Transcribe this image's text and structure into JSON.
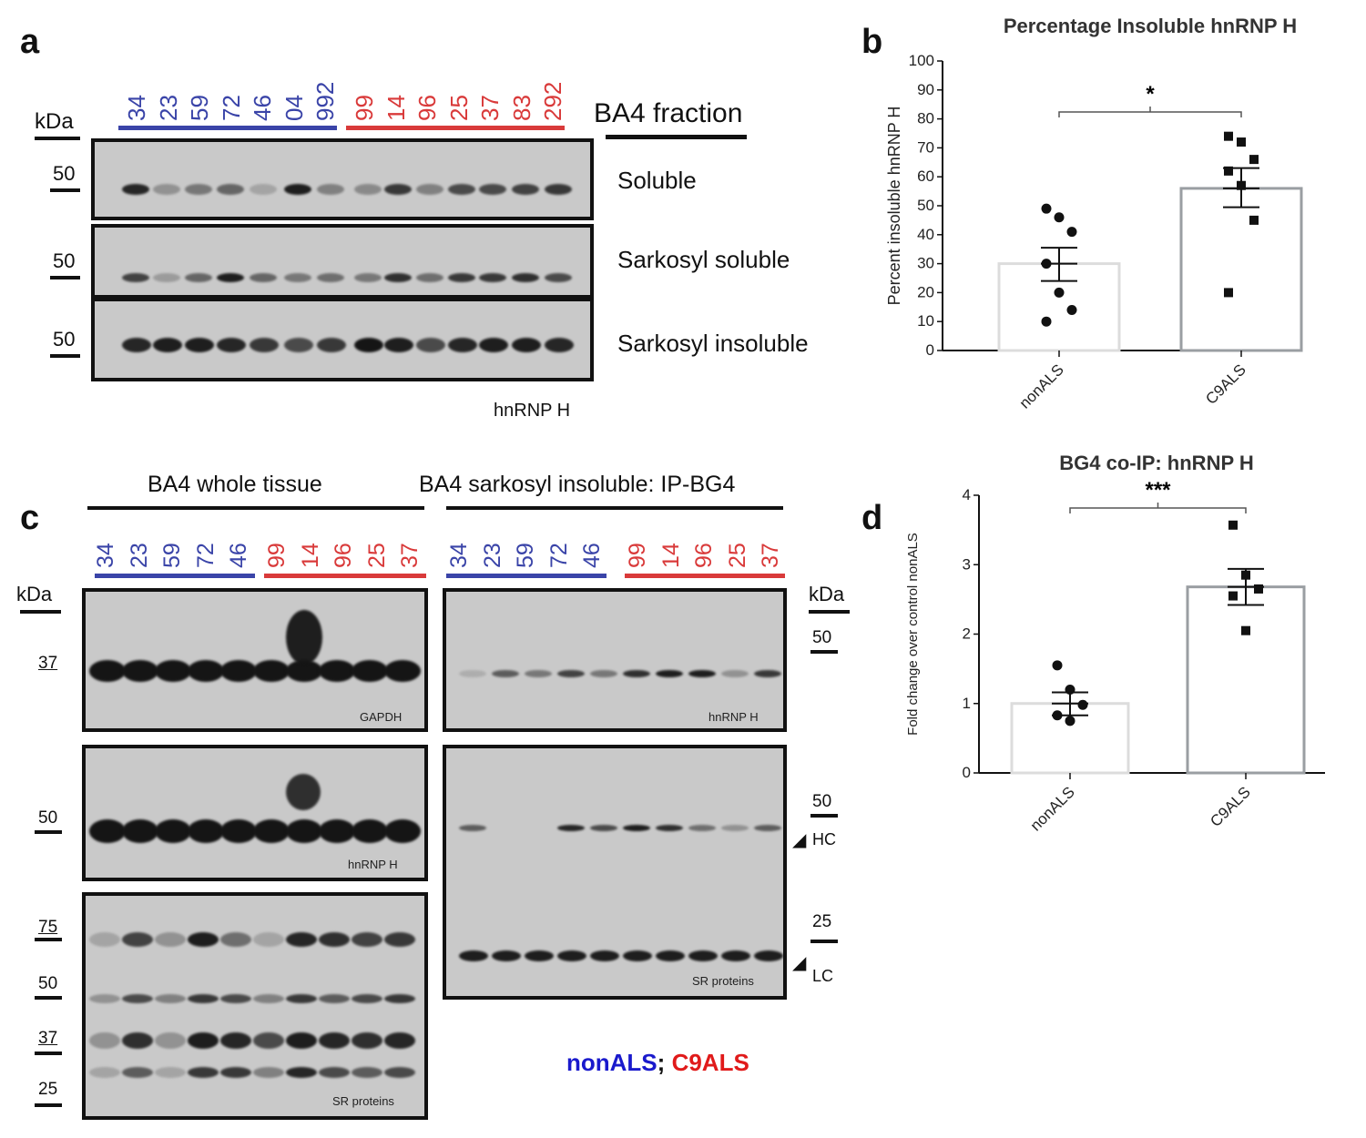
{
  "panels": {
    "a": "a",
    "b": "b",
    "c": "c",
    "d": "d"
  },
  "panel_a": {
    "nonals_lanes": [
      "34",
      "23",
      "59",
      "72",
      "46",
      "04",
      "992"
    ],
    "c9als_lanes": [
      "99",
      "14",
      "96",
      "25",
      "37",
      "83",
      "292"
    ],
    "fraction_title": "BA4 fraction",
    "kda": "kDa",
    "mw_50": "50",
    "rows": [
      "Soluble",
      "Sarkosyl soluble",
      "Sarkosyl insoluble"
    ],
    "footer": "hnRNP H"
  },
  "panel_c": {
    "left_title": "BA4 whole tissue",
    "right_title": "BA4 sarkosyl insoluble: IP-BG4",
    "nonals_lanes": [
      "34",
      "23",
      "59",
      "72",
      "46"
    ],
    "c9als_lanes": [
      "99",
      "14",
      "96",
      "25",
      "37"
    ],
    "kda": "kDa",
    "left_mw": {
      "gapdh": "37",
      "hnrnp": "50",
      "sr_75": "75",
      "sr_50": "50",
      "sr_37": "37",
      "sr_25": "25"
    },
    "right_mw": {
      "hnrnp": "50",
      "ip_50": "50",
      "ip_25": "25"
    },
    "blot_labels": {
      "gapdh": "GAPDH",
      "hnrnp_left": "hnRNP H",
      "sr_left": "SR proteins",
      "hnrnp_right": "hnRNP H",
      "sr_right": "SR proteins"
    },
    "markers": {
      "hc": "HC",
      "lc": "LC"
    },
    "legend": {
      "nonals": "nonALS",
      "sep": ";",
      "c9als": "C9ALS"
    },
    "colors": {
      "nonals": "#1a1acc",
      "c9als": "#e01a1a"
    }
  },
  "chart_data": [
    {
      "type": "bar",
      "title": "Percentage Insoluble hnRNP H",
      "ylabel": "Percent insoluble hnRNP H",
      "xlabel": "",
      "categories": [
        "nonALS",
        "C9ALS"
      ],
      "values": [
        30,
        56
      ],
      "sem": [
        [
          24,
          35.5
        ],
        [
          49.5,
          63
        ]
      ],
      "ylim": [
        0,
        100
      ],
      "yticks": [
        0,
        10,
        20,
        30,
        40,
        50,
        60,
        70,
        80,
        90,
        100
      ],
      "points": [
        [
          49,
          46,
          41,
          30,
          20,
          14,
          10
        ],
        [
          74,
          72,
          66,
          62,
          57,
          45,
          20
        ]
      ],
      "significance": "*",
      "grid": false
    },
    {
      "type": "bar",
      "title": "BG4 co-IP: hnRNP H",
      "ylabel": "Fold change over control nonALS",
      "xlabel": "",
      "categories": [
        "nonALS",
        "C9ALS"
      ],
      "values": [
        1.0,
        2.68
      ],
      "sem": [
        [
          0.83,
          1.16
        ],
        [
          2.42,
          2.94
        ]
      ],
      "ylim": [
        0,
        4
      ],
      "yticks": [
        0,
        1,
        2,
        3,
        4
      ],
      "points": [
        [
          1.55,
          1.2,
          0.98,
          0.83,
          0.75
        ],
        [
          3.57,
          2.85,
          2.65,
          2.55,
          2.05
        ]
      ],
      "significance": "***",
      "grid": false
    }
  ]
}
